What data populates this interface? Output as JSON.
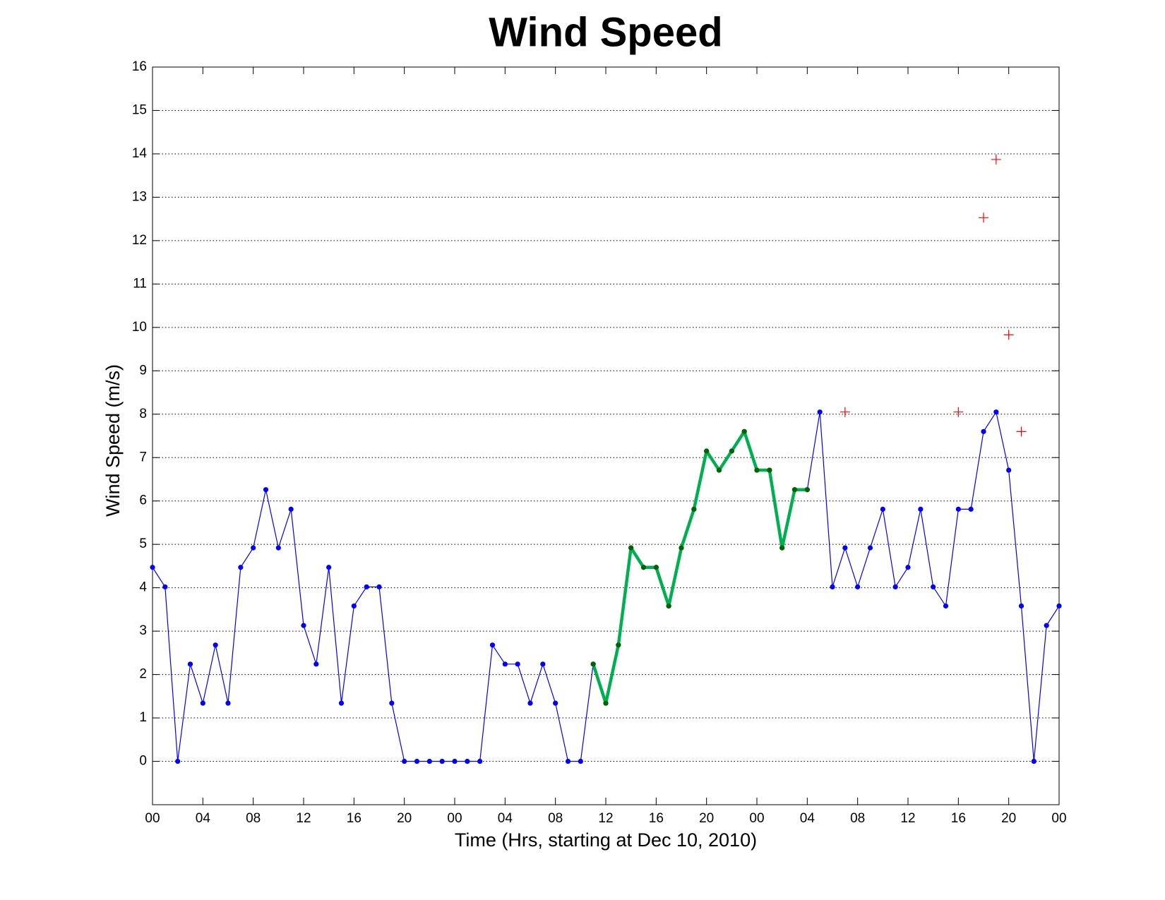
{
  "chart_data": {
    "type": "line",
    "title": "Wind Speed",
    "xlabel": "Time (Hrs, starting at Dec 10, 2010)",
    "ylabel": "Wind Speed (m/s)",
    "xlim": [
      0,
      72
    ],
    "ylim": [
      -1,
      16
    ],
    "xticks": [
      {
        "value": 0,
        "label": "00"
      },
      {
        "value": 4,
        "label": "04"
      },
      {
        "value": 8,
        "label": "08"
      },
      {
        "value": 12,
        "label": "12"
      },
      {
        "value": 16,
        "label": "16"
      },
      {
        "value": 20,
        "label": "20"
      },
      {
        "value": 24,
        "label": "00"
      },
      {
        "value": 28,
        "label": "04"
      },
      {
        "value": 32,
        "label": "08"
      },
      {
        "value": 36,
        "label": "12"
      },
      {
        "value": 40,
        "label": "16"
      },
      {
        "value": 44,
        "label": "20"
      },
      {
        "value": 48,
        "label": "00"
      },
      {
        "value": 52,
        "label": "04"
      },
      {
        "value": 56,
        "label": "08"
      },
      {
        "value": 60,
        "label": "12"
      },
      {
        "value": 64,
        "label": "16"
      },
      {
        "value": 68,
        "label": "20"
      },
      {
        "value": 72,
        "label": "00"
      }
    ],
    "yticks": [
      0,
      1,
      2,
      3,
      4,
      5,
      6,
      7,
      8,
      9,
      10,
      11,
      12,
      13,
      14,
      15,
      16
    ],
    "grid": "y",
    "series": [
      {
        "color": "#0000ff",
        "marker": "dot",
        "line": true,
        "line_width": 1.2,
        "x": [
          0,
          1,
          2,
          3,
          4,
          5,
          6,
          7,
          8,
          9,
          10,
          11,
          12,
          13,
          14,
          15,
          16,
          17,
          18,
          19,
          20,
          21,
          22,
          23,
          24,
          25,
          26,
          27,
          28,
          29,
          30,
          31,
          32,
          33,
          34,
          35,
          36,
          37,
          38,
          39,
          40,
          41,
          42,
          43,
          44,
          45,
          46,
          47,
          48,
          49,
          50,
          51,
          52,
          53,
          54,
          55,
          56,
          57,
          58,
          59,
          60,
          61,
          62,
          63,
          64,
          65,
          66,
          67,
          68,
          69,
          70,
          71,
          72
        ],
        "values": [
          4.47,
          4.02,
          0,
          2.24,
          1.34,
          2.68,
          1.34,
          4.47,
          4.92,
          6.26,
          4.92,
          5.81,
          3.13,
          2.24,
          4.47,
          1.34,
          3.58,
          4.02,
          4.02,
          1.34,
          0,
          0,
          0,
          0,
          0,
          0,
          0,
          2.68,
          2.24,
          2.24,
          1.34,
          2.24,
          1.34,
          0,
          0,
          2.24,
          1.34,
          2.68,
          4.92,
          4.47,
          4.47,
          3.58,
          4.92,
          5.81,
          7.15,
          6.71,
          7.15,
          7.6,
          6.71,
          6.71,
          4.92,
          6.26,
          6.26,
          8.05,
          4.02,
          4.92,
          4.02,
          4.92,
          5.81,
          4.02,
          4.47,
          5.81,
          4.02,
          3.58,
          5.81,
          5.81,
          7.6,
          8.05,
          6.71,
          3.58,
          0,
          3.13,
          3.58
        ]
      },
      {
        "color": "#00b050",
        "marker_color": "#006400",
        "marker": "dot",
        "line": true,
        "line_width": 4.5,
        "x": [
          35,
          36,
          37,
          38,
          39,
          40,
          41,
          42,
          43,
          44,
          45,
          46,
          47,
          48,
          49,
          50,
          51,
          52
        ],
        "values": [
          2.24,
          1.34,
          2.68,
          4.92,
          4.47,
          4.47,
          3.58,
          4.92,
          5.81,
          7.15,
          6.71,
          7.15,
          7.6,
          6.71,
          6.71,
          4.92,
          6.26,
          6.26
        ]
      },
      {
        "color": "#ff0000",
        "marker": "plus",
        "line": false,
        "line_width": 1.2,
        "x": [
          55,
          64,
          66,
          67,
          68,
          69
        ],
        "values": [
          8.05,
          8.05,
          12.53,
          13.87,
          9.83,
          7.6
        ]
      }
    ]
  }
}
